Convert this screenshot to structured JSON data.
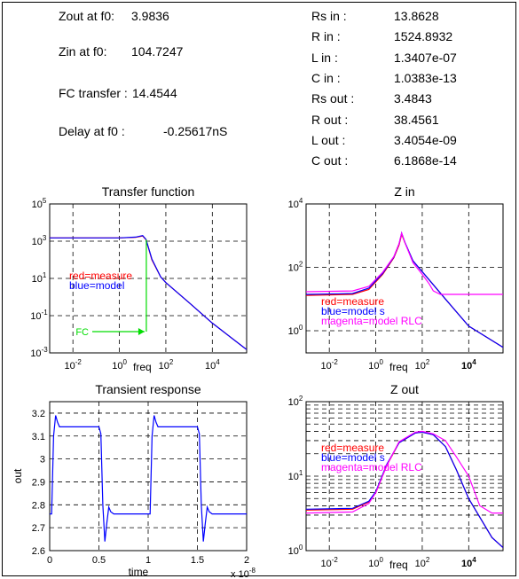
{
  "summary": {
    "left": [
      {
        "label": "Zout at f0:",
        "value": "3.9836"
      },
      {
        "label": "Zin at f0:",
        "value": "104.7247"
      },
      {
        "label": "FC transfer :",
        "value": "14.4544"
      },
      {
        "label": "Delay at f0 :",
        "value": "-0.25617nS"
      }
    ],
    "right": [
      {
        "label": "Rs in :",
        "value": "13.8628"
      },
      {
        "label": "R in :",
        "value": "1524.8932"
      },
      {
        "label": "L in :",
        "value": "1.3407e-07"
      },
      {
        "label": "C in :",
        "value": "1.0383e-13"
      },
      {
        "label": "Rs out :",
        "value": "3.4843"
      },
      {
        "label": "R out :",
        "value": "38.4561"
      },
      {
        "label": "L out :",
        "value": "3.4054e-09"
      },
      {
        "label": "C out :",
        "value": "6.1868e-14"
      }
    ]
  },
  "colors": {
    "measure": "#ff0000",
    "model": "#0000ff",
    "model_rlc": "#ff00ff",
    "marker": "#00dd00",
    "grid": "#000000"
  },
  "chart_data": [
    {
      "id": "transfer",
      "type": "line",
      "title": "Transfer function",
      "xlabel": "freq",
      "ylabel": "",
      "xscale": "log",
      "yscale": "log",
      "xlim": [
        0.001,
        300000
      ],
      "ylim": [
        0.001,
        100000
      ],
      "xticks": [
        {
          "v": 0.01,
          "b": "10",
          "e": "-2"
        },
        {
          "v": 1,
          "b": "10",
          "e": "0"
        },
        {
          "v": 100,
          "b": "10",
          "e": "2"
        },
        {
          "v": 10000,
          "b": "10",
          "e": "4"
        }
      ],
      "yticks": [
        {
          "v": 0.001,
          "b": "10",
          "e": "-3"
        },
        {
          "v": 0.1,
          "b": "10",
          "e": "-1"
        },
        {
          "v": 10,
          "b": "10",
          "e": "1"
        },
        {
          "v": 1000,
          "b": "10",
          "e": "3"
        },
        {
          "v": 100000,
          "b": "10",
          "e": "5"
        }
      ],
      "legend": [
        "red=measure",
        "blue=model"
      ],
      "marker_label": "FC",
      "marker_x": 14.4544,
      "series": [
        {
          "color": "measure",
          "points": [
            [
              0.001,
              1500
            ],
            [
              1,
              1500
            ],
            [
              5,
              1600
            ],
            [
              10,
              1900
            ],
            [
              14,
              1200
            ],
            [
              25,
              100
            ],
            [
              60,
              12
            ],
            [
              100,
              6
            ],
            [
              1000,
              0.5
            ],
            [
              10000,
              0.04
            ],
            [
              300000,
              0.0015
            ]
          ]
        },
        {
          "color": "model",
          "points": [
            [
              0.001,
              1500
            ],
            [
              1,
              1500
            ],
            [
              5,
              1650
            ],
            [
              10,
              2000
            ],
            [
              14,
              1250
            ],
            [
              25,
              110
            ],
            [
              60,
              12
            ],
            [
              100,
              6
            ],
            [
              1000,
              0.5
            ],
            [
              10000,
              0.04
            ],
            [
              300000,
              0.0015
            ]
          ]
        }
      ]
    },
    {
      "id": "zin",
      "type": "line",
      "title": "Z in",
      "xlabel": "freq",
      "ylabel": "",
      "xscale": "log",
      "yscale": "log",
      "xlim": [
        0.001,
        300000
      ],
      "ylim": [
        0.2,
        10000
      ],
      "xticks": [
        {
          "v": 0.01,
          "b": "10",
          "e": "-2"
        },
        {
          "v": 1,
          "b": "10",
          "e": "0"
        },
        {
          "v": 100,
          "b": "10",
          "e": "2"
        },
        {
          "v": 10000,
          "b": "10",
          "e": "4",
          "bold": true
        }
      ],
      "yticks": [
        {
          "v": 1,
          "b": "10",
          "e": "0"
        },
        {
          "v": 100,
          "b": "10",
          "e": "2"
        },
        {
          "v": 10000,
          "b": "10",
          "e": "4"
        }
      ],
      "legend": [
        "red=measure",
        "blue=model s",
        "magenta=model RLC"
      ],
      "series": [
        {
          "color": "measure",
          "points": [
            [
              0.001,
              13
            ],
            [
              0.1,
              14
            ],
            [
              0.5,
              20
            ],
            [
              2,
              60
            ],
            [
              6,
              200
            ],
            [
              10,
              500
            ],
            [
              13,
              1100
            ],
            [
              18,
              600
            ],
            [
              40,
              160
            ],
            [
              200,
              40
            ],
            [
              1000,
              10
            ],
            [
              10000,
              1.4
            ],
            [
              300000,
              0.3
            ]
          ]
        },
        {
          "color": "model",
          "points": [
            [
              0.001,
              14
            ],
            [
              0.1,
              15
            ],
            [
              0.5,
              22
            ],
            [
              2,
              65
            ],
            [
              6,
              210
            ],
            [
              10,
              550
            ],
            [
              13,
              1200
            ],
            [
              18,
              620
            ],
            [
              40,
              160
            ],
            [
              200,
              40
            ],
            [
              1000,
              10
            ],
            [
              10000,
              1.4
            ],
            [
              300000,
              0.3
            ]
          ]
        },
        {
          "color": "model_rlc",
          "points": [
            [
              0.001,
              17
            ],
            [
              0.1,
              18
            ],
            [
              0.5,
              25
            ],
            [
              2,
              70
            ],
            [
              6,
              220
            ],
            [
              10,
              560
            ],
            [
              13,
              1200
            ],
            [
              18,
              600
            ],
            [
              40,
              140
            ],
            [
              100,
              60
            ],
            [
              200,
              30
            ],
            [
              300,
              18
            ],
            [
              600,
              14
            ],
            [
              1000,
              14
            ],
            [
              300000,
              14
            ]
          ]
        }
      ]
    },
    {
      "id": "transient",
      "type": "line",
      "title": "Transient response",
      "xlabel": "time",
      "ylabel": "out",
      "xscale": "linear",
      "yscale": "linear",
      "xlim": [
        0,
        2
      ],
      "ylim": [
        2.6,
        3.25
      ],
      "xticks": [
        {
          "v": 0,
          "t": "0"
        },
        {
          "v": 0.5,
          "t": "0.5"
        },
        {
          "v": 1,
          "t": "1"
        },
        {
          "v": 1.5,
          "t": "1.5"
        },
        {
          "v": 2,
          "t": "2"
        }
      ],
      "yticks": [
        {
          "v": 2.6,
          "t": "2.6"
        },
        {
          "v": 2.7,
          "t": "2.7"
        },
        {
          "v": 2.8,
          "t": "2.8"
        },
        {
          "v": 2.9,
          "t": "2.9"
        },
        {
          "v": 3.0,
          "t": "3"
        },
        {
          "v": 3.1,
          "t": "3.1"
        },
        {
          "v": 3.2,
          "t": "3.2"
        }
      ],
      "x_multiplier": {
        "b": "x 10",
        "e": "-8"
      },
      "series": [
        {
          "color": "model",
          "points": [
            [
              0,
              2.76
            ],
            [
              0.02,
              2.76
            ],
            [
              0.04,
              3.1
            ],
            [
              0.06,
              3.19
            ],
            [
              0.08,
              3.16
            ],
            [
              0.1,
              3.14
            ],
            [
              0.5,
              3.14
            ],
            [
              0.52,
              3.11
            ],
            [
              0.54,
              2.8
            ],
            [
              0.56,
              2.64
            ],
            [
              0.58,
              2.72
            ],
            [
              0.6,
              2.79
            ],
            [
              0.62,
              2.77
            ],
            [
              0.65,
              2.76
            ],
            [
              1.0,
              2.76
            ],
            [
              1.02,
              2.76
            ],
            [
              1.04,
              3.1
            ],
            [
              1.06,
              3.19
            ],
            [
              1.08,
              3.16
            ],
            [
              1.1,
              3.14
            ],
            [
              1.5,
              3.14
            ],
            [
              1.52,
              3.11
            ],
            [
              1.54,
              2.8
            ],
            [
              1.56,
              2.64
            ],
            [
              1.58,
              2.72
            ],
            [
              1.6,
              2.79
            ],
            [
              1.62,
              2.77
            ],
            [
              1.65,
              2.76
            ],
            [
              2.0,
              2.76
            ]
          ]
        }
      ]
    },
    {
      "id": "zout",
      "type": "line",
      "title": "Z out",
      "xlabel": "freq",
      "ylabel": "",
      "xscale": "log",
      "yscale": "log",
      "xlim": [
        0.001,
        300000
      ],
      "ylim": [
        1,
        100
      ],
      "xticks": [
        {
          "v": 0.01,
          "b": "10",
          "e": "-2"
        },
        {
          "v": 1,
          "b": "10",
          "e": "0"
        },
        {
          "v": 100,
          "b": "10",
          "e": "2"
        },
        {
          "v": 10000,
          "b": "10",
          "e": "4",
          "bold": true
        }
      ],
      "yticks": [
        {
          "v": 1,
          "b": "10",
          "e": "0"
        },
        {
          "v": 10,
          "b": "10",
          "e": "1"
        },
        {
          "v": 100,
          "b": "10",
          "e": "2"
        }
      ],
      "minor_grid_y": true,
      "legend": [
        "red=measure",
        "blue=model s",
        "magenta=model RLC"
      ],
      "series": [
        {
          "color": "measure",
          "points": [
            [
              0.001,
              3.5
            ],
            [
              0.1,
              3.6
            ],
            [
              0.5,
              4.5
            ],
            [
              1,
              6
            ],
            [
              3,
              14
            ],
            [
              10,
              28
            ],
            [
              50,
              38
            ],
            [
              100,
              39
            ],
            [
              300,
              36
            ],
            [
              1000,
              25
            ],
            [
              3000,
              12
            ],
            [
              10000,
              5
            ],
            [
              100000,
              1.5
            ],
            [
              300000,
              1.1
            ]
          ]
        },
        {
          "color": "model",
          "points": [
            [
              0.001,
              3.6
            ],
            [
              0.1,
              3.7
            ],
            [
              0.5,
              4.6
            ],
            [
              1,
              6.2
            ],
            [
              3,
              14.5
            ],
            [
              10,
              28
            ],
            [
              50,
              38
            ],
            [
              100,
              39
            ],
            [
              300,
              36
            ],
            [
              1000,
              25
            ],
            [
              3000,
              12
            ],
            [
              10000,
              5
            ],
            [
              100000,
              1.5
            ],
            [
              300000,
              1.1
            ]
          ]
        },
        {
          "color": "model_rlc",
          "points": [
            [
              0.001,
              3.2
            ],
            [
              0.1,
              3.3
            ],
            [
              0.5,
              4.3
            ],
            [
              1,
              6
            ],
            [
              3,
              14
            ],
            [
              10,
              29
            ],
            [
              50,
              39
            ],
            [
              100,
              40
            ],
            [
              300,
              37
            ],
            [
              1000,
              30
            ],
            [
              3000,
              18
            ],
            [
              10000,
              10
            ],
            [
              30000,
              4
            ],
            [
              100000,
              3.2
            ],
            [
              300000,
              3.2
            ]
          ]
        }
      ]
    }
  ]
}
